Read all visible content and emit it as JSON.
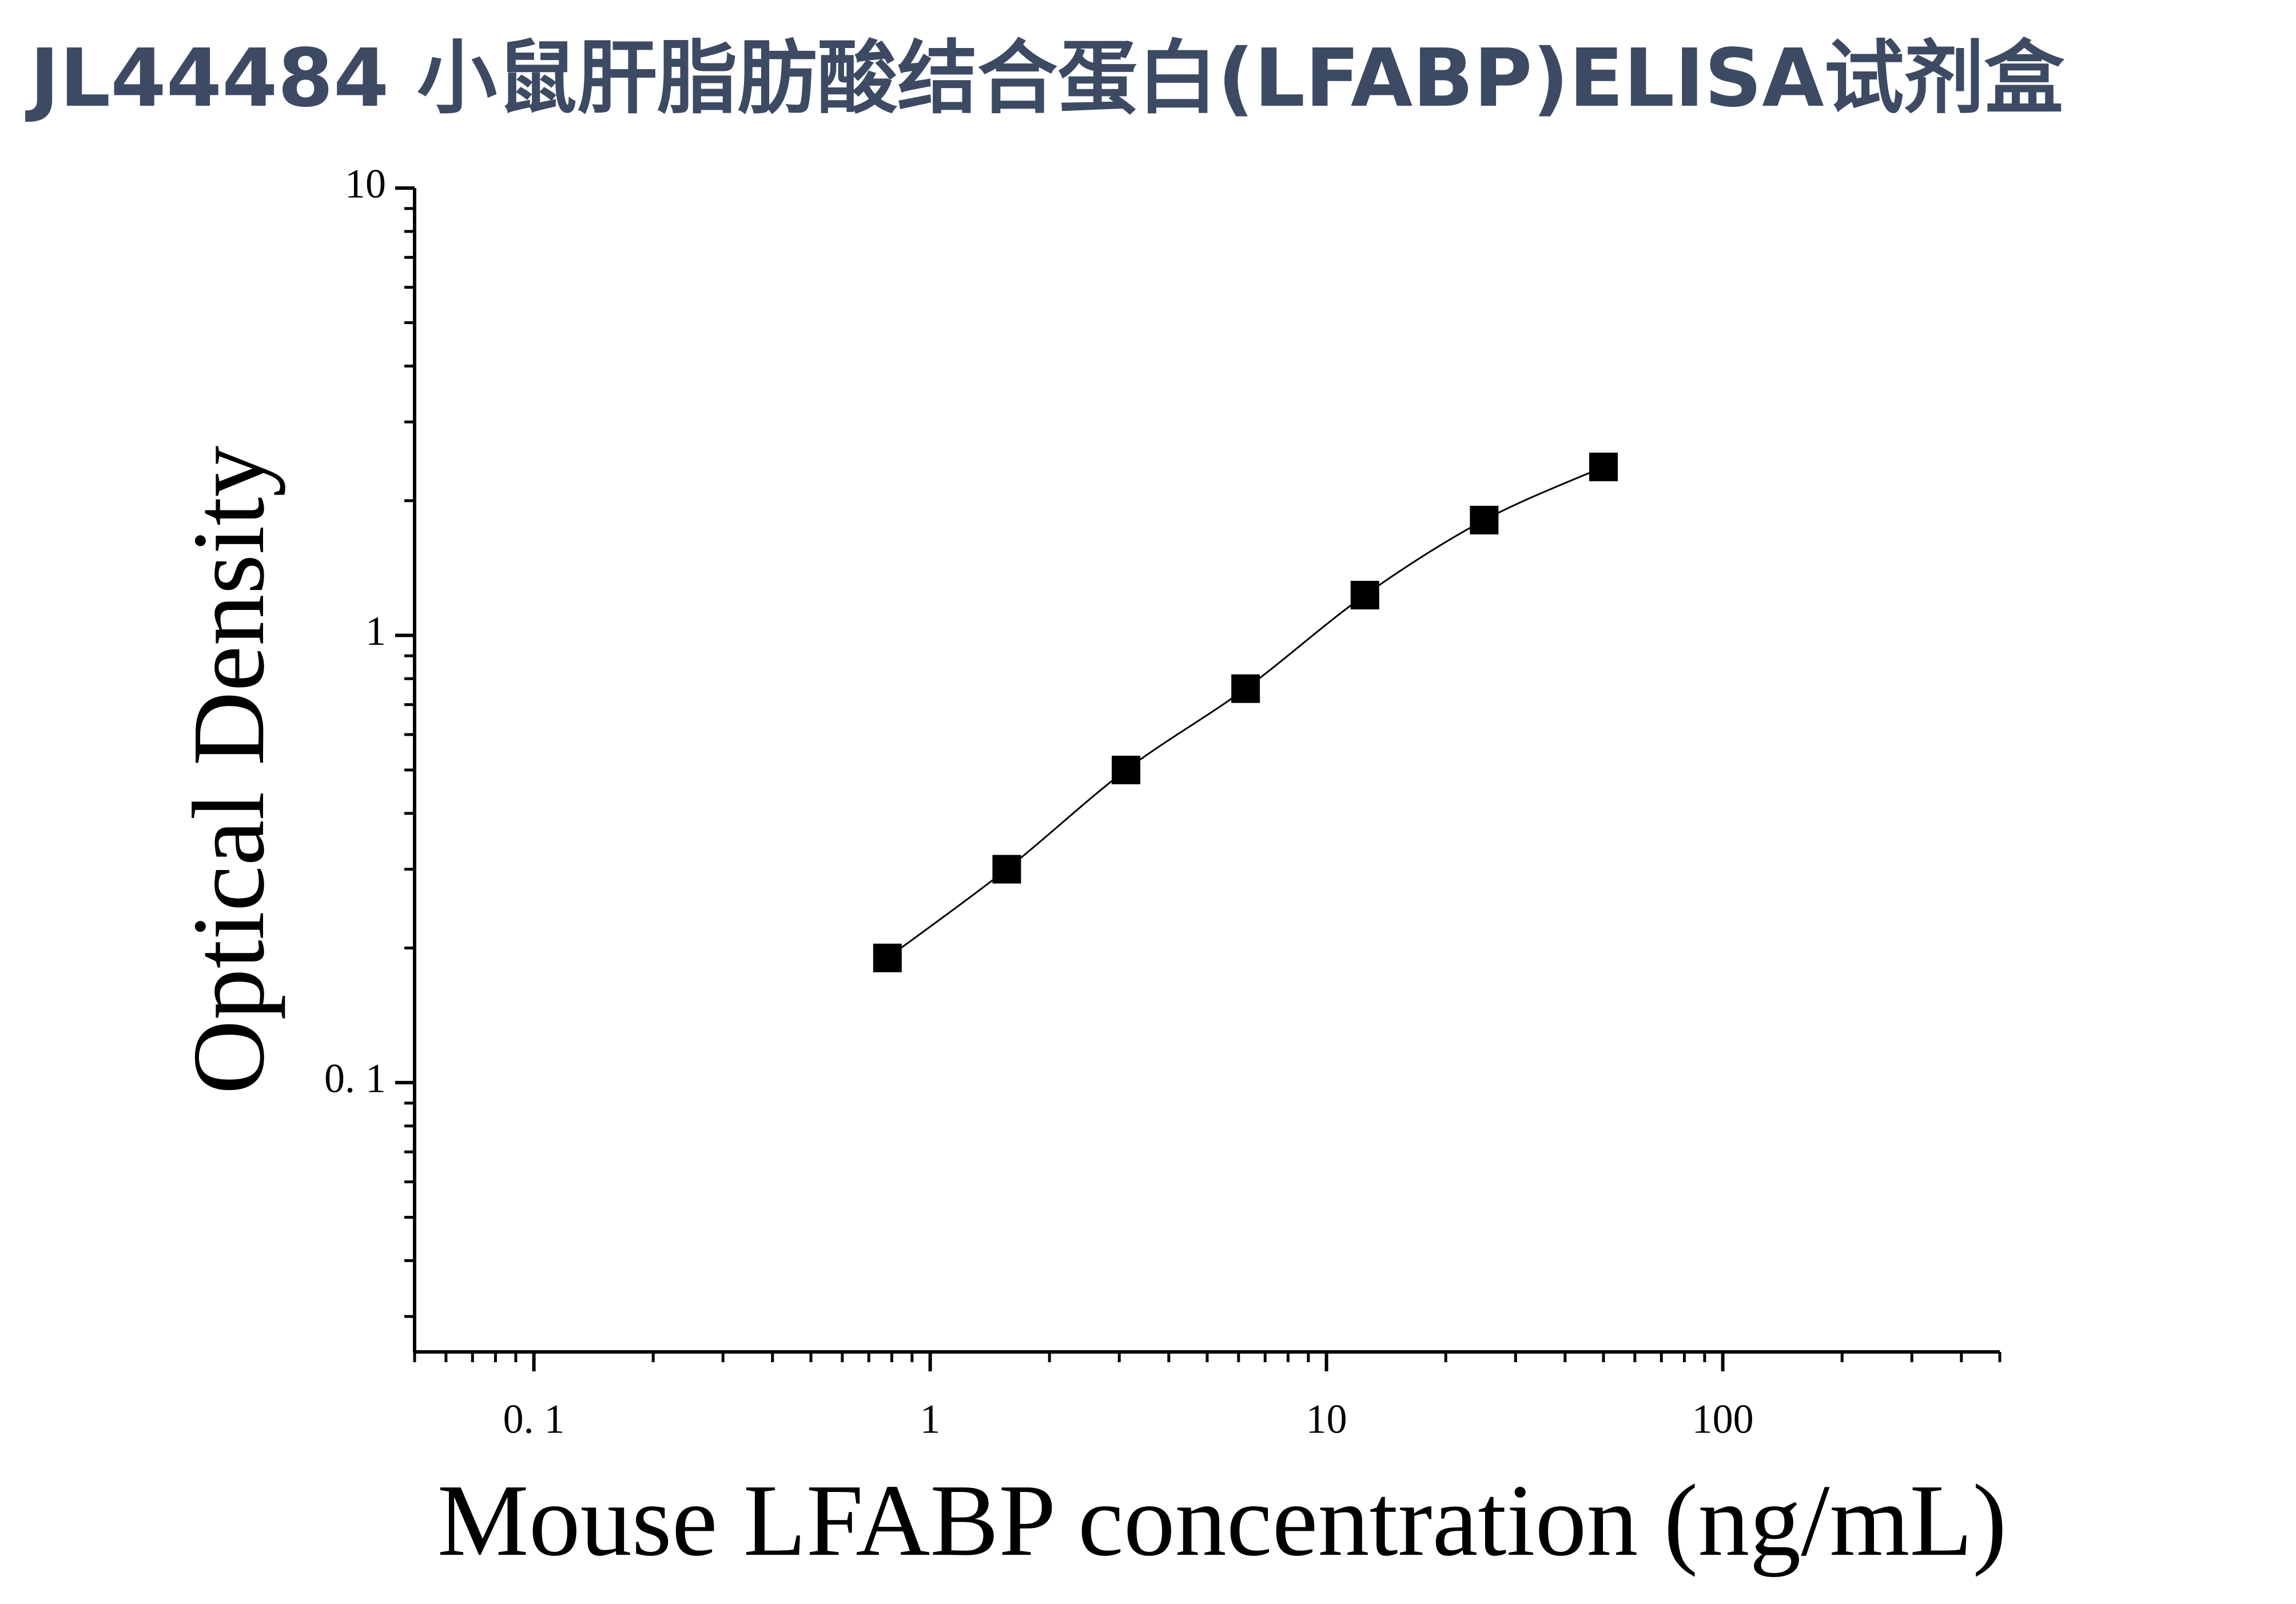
{
  "chart_data": {
    "type": "scatter",
    "title": "JL44484 小鼠肝脂肪酸结合蛋白(LFABP)ELISA试剂盒",
    "x_label": "Mouse LFABP concentration (ng/mL)",
    "y_label": "Optical Density",
    "x_log": true,
    "y_log": true,
    "xlim": [
      0.05,
      500
    ],
    "ylim": [
      0.025,
      10
    ],
    "xticks": [
      {
        "value": 0.1,
        "label": "0. 1"
      },
      1,
      10,
      100
    ],
    "yticks": [
      {
        "value": 0.1,
        "label": "0. 1"
      },
      1,
      10
    ],
    "series": [
      {
        "color": "#000000",
        "x": [
          0.78,
          1.56,
          3.12,
          6.25,
          12.5,
          25,
          50
        ],
        "values": [
          0.19,
          0.3,
          0.5,
          0.76,
          1.23,
          1.81,
          2.38
        ]
      }
    ]
  }
}
